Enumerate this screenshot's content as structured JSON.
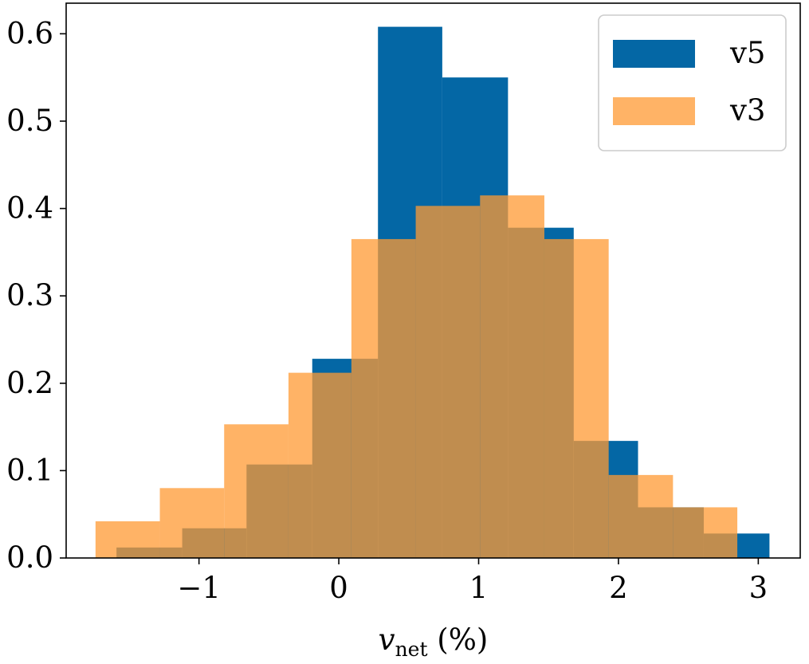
{
  "chart_data": {
    "type": "bar",
    "histogram": true,
    "xlabel": {
      "main": "v",
      "sub": "net",
      "rest": " (%)"
    },
    "xlim": [
      -1.95,
      3.3
    ],
    "ylim": [
      0,
      0.635
    ],
    "xticks": [
      -1,
      0,
      1,
      2,
      3
    ],
    "xtick_labels": [
      "−1",
      "0",
      "1",
      "2",
      "3"
    ],
    "yticks": [
      0.0,
      0.1,
      0.2,
      0.3,
      0.4,
      0.5,
      0.6
    ],
    "ytick_labels": [
      "0.0",
      "0.1",
      "0.2",
      "0.3",
      "0.4",
      "0.5",
      "0.6"
    ],
    "grid": false,
    "legend_position": "top-right",
    "series": [
      {
        "name": "v5",
        "color": "#0467a5",
        "opacity": 1.0,
        "bin_edges": [
          -1.59,
          -1.12,
          -0.66,
          -0.19,
          0.28,
          0.74,
          1.21,
          1.68,
          2.14,
          2.61,
          3.08
        ],
        "values": [
          0.012,
          0.034,
          0.107,
          0.228,
          0.608,
          0.55,
          0.378,
          0.134,
          0.058,
          0.028
        ]
      },
      {
        "name": "v3",
        "color": "#ff9933",
        "opacity": 0.75,
        "bin_edges": [
          -1.74,
          -1.28,
          -0.82,
          -0.36,
          0.09,
          0.55,
          1.01,
          1.47,
          1.93,
          2.39,
          2.85
        ],
        "values": [
          0.042,
          0.08,
          0.153,
          0.212,
          0.365,
          0.403,
          0.415,
          0.365,
          0.095,
          0.058
        ]
      }
    ]
  }
}
